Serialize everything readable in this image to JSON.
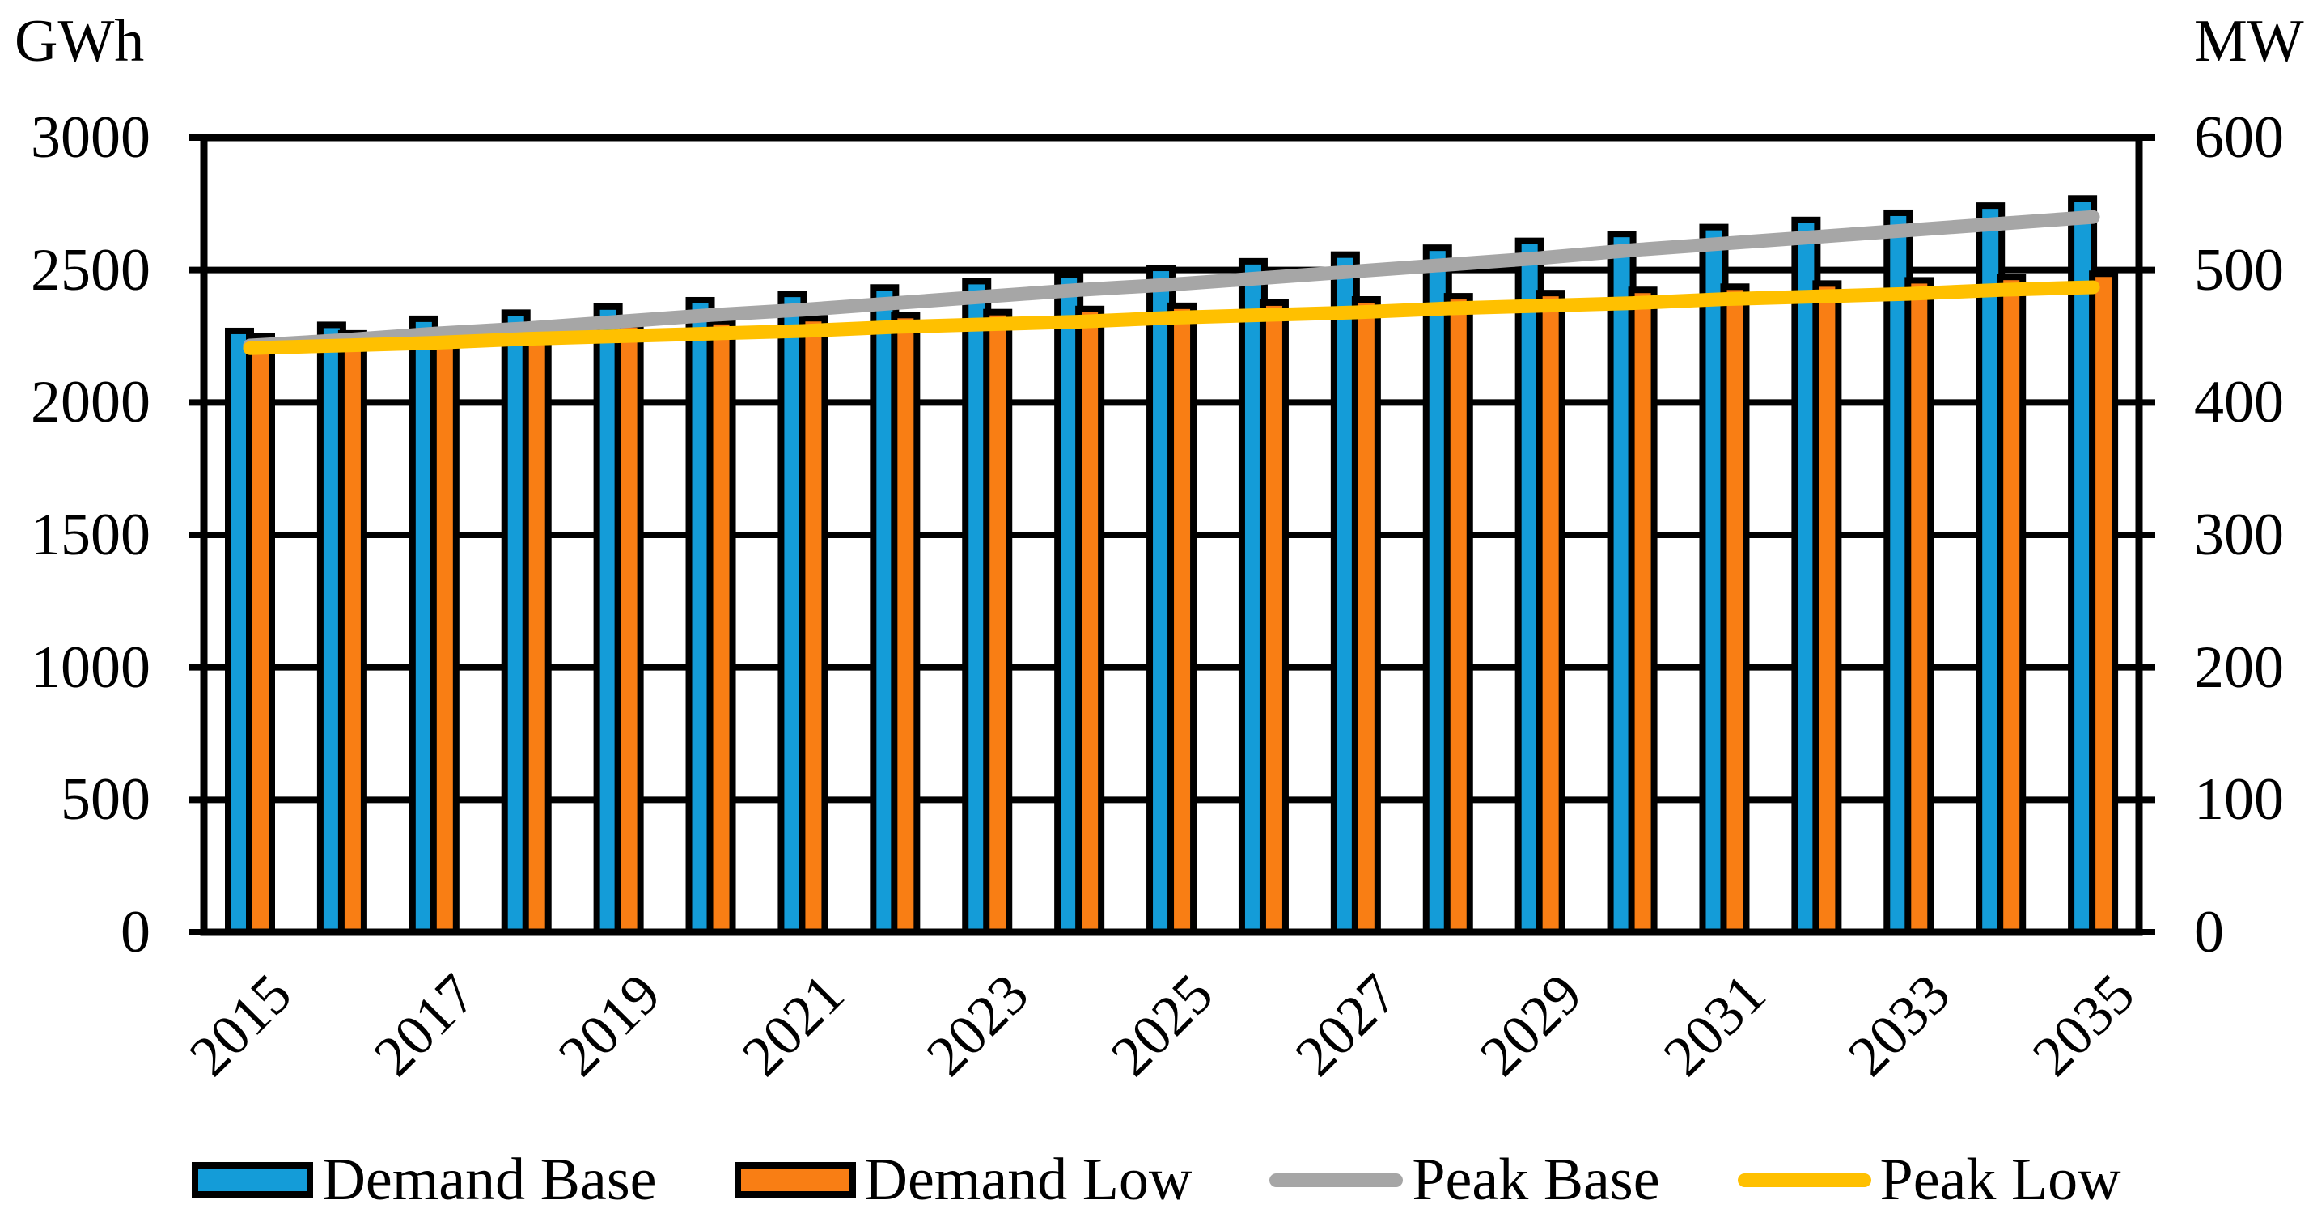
{
  "axes": {
    "left_title": "GWh",
    "right_title": "MW",
    "left_ticks": [
      "3000",
      "2500",
      "2000",
      "1500",
      "1000",
      "500",
      "0"
    ],
    "right_ticks": [
      "600",
      "500",
      "400",
      "300",
      "200",
      "100",
      "0"
    ],
    "x_ticks": [
      "2015",
      "2017",
      "2019",
      "2021",
      "2023",
      "2025",
      "2027",
      "2029",
      "2031",
      "2033",
      "2035"
    ]
  },
  "legend": [
    {
      "label": "Demand Base",
      "type": "bar",
      "color": "#149CD8"
    },
    {
      "label": "Demand Low",
      "type": "bar",
      "color": "#F97E14"
    },
    {
      "label": "Peak Base",
      "type": "line",
      "color": "#A6A6A6"
    },
    {
      "label": "Peak Low",
      "type": "line",
      "color": "#FFC000"
    }
  ],
  "chart_data": {
    "type": "bar+line combo",
    "title": "",
    "categories": [
      2015,
      2016,
      2017,
      2018,
      2019,
      2020,
      2021,
      2022,
      2023,
      2024,
      2025,
      2026,
      2027,
      2028,
      2029,
      2030,
      2031,
      2032,
      2033,
      2034,
      2035
    ],
    "series": [
      {
        "name": "Demand Base",
        "type": "bar",
        "axis": "left",
        "unit": "GWh",
        "color": "#149CD8",
        "values": [
          2270,
          2293,
          2316,
          2339,
          2362,
          2386,
          2410,
          2434,
          2458,
          2483,
          2508,
          2533,
          2558,
          2584,
          2610,
          2636,
          2662,
          2689,
          2716,
          2743,
          2770
        ]
      },
      {
        "name": "Demand Low",
        "type": "bar",
        "axis": "left",
        "unit": "GWh",
        "color": "#F97E14",
        "values": [
          2250,
          2261,
          2273,
          2284,
          2295,
          2307,
          2318,
          2330,
          2341,
          2353,
          2365,
          2377,
          2389,
          2401,
          2413,
          2425,
          2437,
          2449,
          2461,
          2474,
          2486
        ]
      },
      {
        "name": "Peak Base",
        "type": "line",
        "axis": "right",
        "unit": "MW",
        "color": "#A6A6A6",
        "values": [
          443,
          447,
          452,
          456,
          461,
          466,
          470,
          475,
          480,
          485,
          489,
          494,
          499,
          504,
          509,
          515,
          520,
          525,
          530,
          535,
          540
        ]
      },
      {
        "name": "Peak Low",
        "type": "line",
        "axis": "right",
        "unit": "MW",
        "color": "#FFC000",
        "values": [
          441,
          443,
          445,
          448,
          450,
          452,
          454,
          457,
          459,
          461,
          464,
          466,
          468,
          471,
          473,
          475,
          478,
          480,
          482,
          485,
          487
        ]
      }
    ],
    "left_axis": {
      "label": "GWh",
      "range": [
        0,
        3000
      ],
      "tick_step": 500
    },
    "right_axis": {
      "label": "MW",
      "range": [
        0,
        600
      ],
      "tick_step": 100
    },
    "x_tick_labels_every": 2,
    "grid": "horizontal",
    "legend_position": "bottom",
    "bar_outline_color": "#000000"
  }
}
